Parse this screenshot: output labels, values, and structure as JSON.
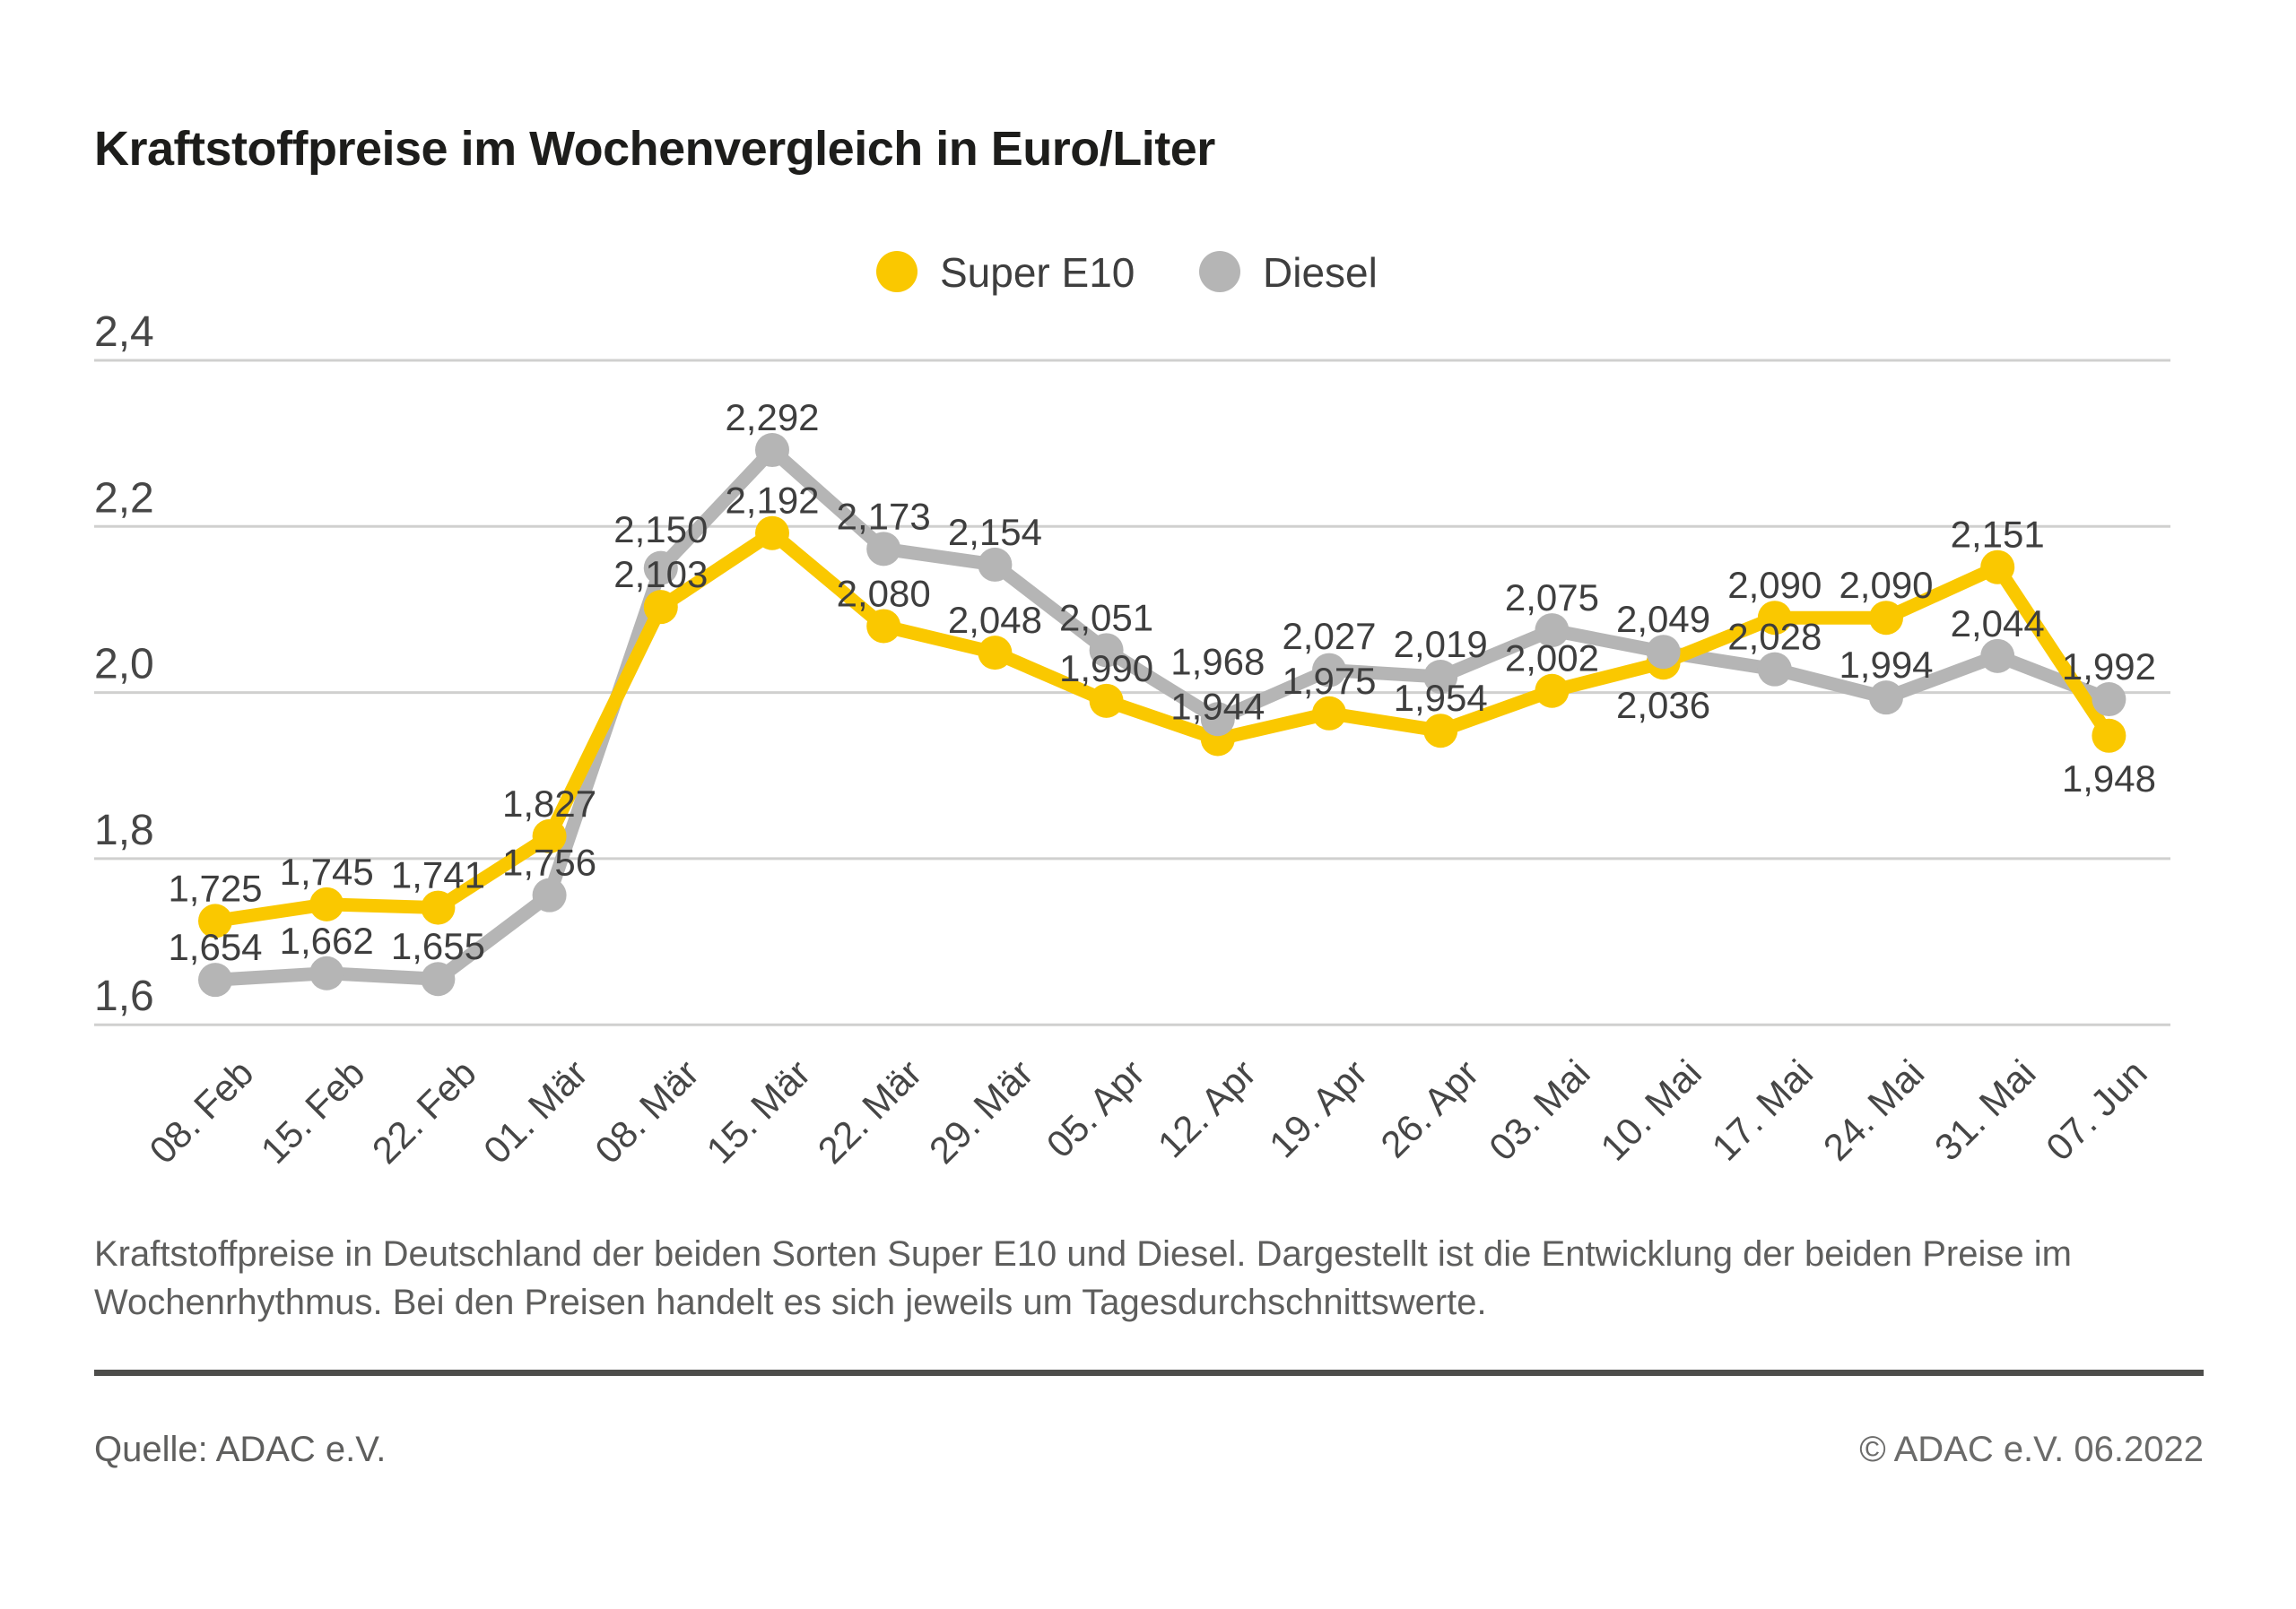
{
  "title": "Kraftstoffpreise im Wochenvergleich in Euro/Liter",
  "legend": {
    "super_e10": "Super E10",
    "diesel": "Diesel"
  },
  "colors": {
    "super_e10": "#fac800",
    "diesel": "#b5b5b5",
    "grid": "#d0d0cf",
    "label_text": "#3e3e3e",
    "tick_text": "#464646"
  },
  "chart_data": {
    "type": "line",
    "title": "Kraftstoffpreise im Wochenvergleich in Euro/Liter",
    "unit": "Euro/Liter",
    "x": [
      "08. Feb",
      "15. Feb",
      "22. Feb",
      "01. Mär",
      "08. Mär",
      "15. Mär",
      "22. Mär",
      "29. Mär",
      "05. Apr",
      "12. Apr",
      "19. Apr",
      "26. Apr",
      "03. Mai",
      "10. Mai",
      "17. Mai",
      "24. Mai",
      "31. Mai",
      "07. Jun"
    ],
    "series": [
      {
        "name": "Super E10",
        "color": "#fac800",
        "values": [
          1.725,
          1.745,
          1.741,
          1.827,
          2.103,
          2.192,
          2.08,
          2.048,
          1.99,
          1.944,
          1.975,
          1.954,
          2.002,
          2.036,
          2.09,
          2.09,
          2.151,
          1.948
        ]
      },
      {
        "name": "Diesel",
        "color": "#b5b5b5",
        "values": [
          1.654,
          1.662,
          1.655,
          1.756,
          2.15,
          2.292,
          2.173,
          2.154,
          2.051,
          1.968,
          2.027,
          2.019,
          2.075,
          2.049,
          2.028,
          1.994,
          2.044,
          1.992
        ]
      }
    ],
    "yticks": [
      {
        "value": 2.4,
        "label": "2,4"
      },
      {
        "value": 2.2,
        "label": "2,2"
      },
      {
        "value": 2.0,
        "label": "2,0"
      },
      {
        "value": 1.8,
        "label": "1,8"
      },
      {
        "value": 1.6,
        "label": "1,6"
      }
    ],
    "ylim": [
      1.6,
      2.45
    ],
    "grid": true,
    "legend_position": "top-center",
    "value_labels": true,
    "decimal_format": "comma"
  },
  "footer": {
    "description": "Kraftstoffpreise in Deutschland der beiden Sorten Super E10 und Diesel. Dargestellt ist die Entwicklung der beiden Preise im Wochenrhythmus. Bei den Preisen handelt es sich jeweils um Tagesdurchschnittswerte.",
    "source": "Quelle: ADAC e.V.",
    "copyright": "© ADAC e.V. 06.2022"
  }
}
